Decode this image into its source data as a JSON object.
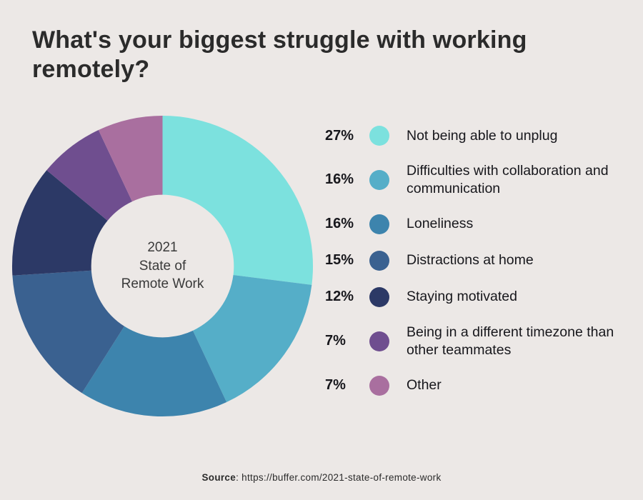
{
  "title": "What's your biggest struggle with working remotely?",
  "chart_data": {
    "type": "pie",
    "variant": "donut",
    "title": "What's your biggest struggle with working remotely?",
    "center_label": "2021 State of Remote Work",
    "center_label_lines": [
      "2021",
      "State of",
      "Remote Work"
    ],
    "categories": [
      "Not being able to unplug",
      "Difficulties with collaboration and communication",
      "Loneliness",
      "Distractions at home",
      "Staying motivated",
      "Being in a different timezone than other teammates",
      "Other"
    ],
    "values": [
      27,
      16,
      16,
      15,
      12,
      7,
      7
    ],
    "unit": "%",
    "colors": [
      "#7ce1de",
      "#55aec8",
      "#3d84ad",
      "#3a6190",
      "#2c3966",
      "#6f4e8f",
      "#a96f9f"
    ],
    "start_angle_deg": -90,
    "direction": "clockwise",
    "legend_position": "right",
    "inner_radius_ratio": 0.475
  },
  "legend": {
    "items": [
      {
        "pct": "27%",
        "label": "Not being able to unplug"
      },
      {
        "pct": "16%",
        "label": "Difficulties with collaboration and communication"
      },
      {
        "pct": "16%",
        "label": "Loneliness"
      },
      {
        "pct": "15%",
        "label": "Distractions at home"
      },
      {
        "pct": "12%",
        "label": "Staying motivated"
      },
      {
        "pct": "7%",
        "label": "Being in a different timezone than other teammates"
      },
      {
        "pct": "7%",
        "label": "Other"
      }
    ]
  },
  "source": {
    "label": "Source",
    "separator": ": ",
    "url": "https://buffer.com/2021-state-of-remote-work"
  },
  "colors": {
    "background": "#ece8e6",
    "title_text": "#2b2b2b",
    "legend_text": "#17171c"
  }
}
